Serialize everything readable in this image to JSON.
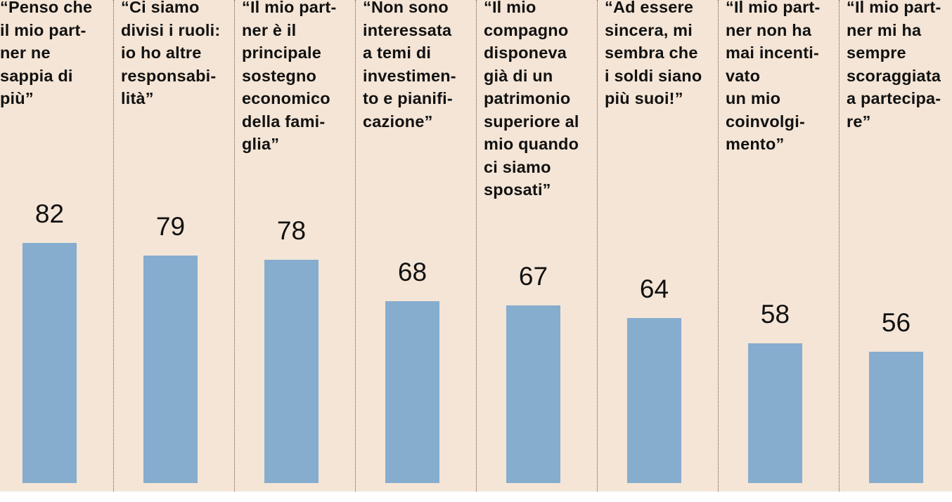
{
  "chart_data": {
    "type": "bar",
    "title": "",
    "xlabel": "",
    "ylabel": "",
    "categories": [
      "“Penso che\nil mio part-\nner ne\nsappia di\npiù”",
      "“Ci siamo\ndivisi i ruoli:\nio ho altre\nresponsabi-\nlità”",
      "“Il mio part-\nner è il\nprincipale\nsostegno\neconomico\ndella fami-\nglia”",
      "“Non sono\ninteressata\na temi di\ninvestimen-\nto e pianifi-\ncazione”",
      "“Il mio\ncompagno\ndisponeva\ngià di un\npatrimonio\nsuperiore al\nmio quando\nci siamo\nsposati”",
      "“Ad essere\nsincera, mi\nsembra che\ni soldi siano\npiù suoi!”",
      "“Il mio part-\nner non ha\nmai incenti-\nvato\nun mio\ncoinvolgi-\nmento”",
      "“Il mio part-\nner mi ha\nsempre\nscoraggiata\na partecipa-\nre”"
    ],
    "values": [
      82,
      79,
      78,
      68,
      67,
      64,
      58,
      56
    ],
    "value_labels": [
      "82",
      "79",
      "78",
      "68",
      "67",
      "64",
      "58",
      "56"
    ],
    "bar_color": "#86acce",
    "background_color": "#f4e5d6",
    "grid": false
  }
}
